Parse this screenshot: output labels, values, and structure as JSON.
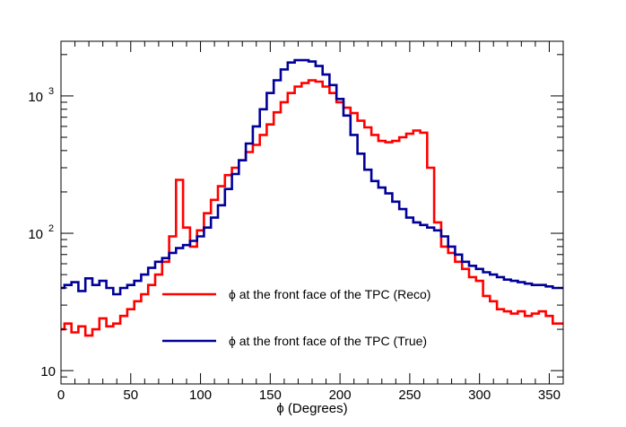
{
  "chart_data": {
    "type": "line",
    "title": "",
    "xlabel": "ϕ (Degrees)",
    "ylabel": "",
    "xlim": [
      0,
      360
    ],
    "ylim": [
      8,
      2500
    ],
    "yscale": "log",
    "grid": false,
    "legend_placement": "lower-center",
    "x_ticks": [
      0,
      50,
      100,
      150,
      200,
      250,
      300,
      350
    ],
    "x_tick_labels": [
      "0",
      "50",
      "100",
      "150",
      "200",
      "250",
      "300",
      "350"
    ],
    "y_ticks": [
      10,
      100,
      1000
    ],
    "y_tick_labels": [
      "10",
      "10",
      "10"
    ],
    "y_tick_exponents": [
      "",
      "2",
      "3"
    ],
    "x": [
      0,
      5,
      10,
      15,
      20,
      25,
      30,
      35,
      40,
      45,
      50,
      55,
      60,
      65,
      70,
      75,
      80,
      85,
      90,
      95,
      100,
      105,
      110,
      115,
      120,
      125,
      130,
      135,
      140,
      145,
      150,
      155,
      160,
      165,
      170,
      175,
      180,
      185,
      190,
      195,
      200,
      205,
      210,
      215,
      220,
      225,
      230,
      235,
      240,
      245,
      250,
      255,
      260,
      265,
      270,
      275,
      280,
      285,
      290,
      295,
      300,
      305,
      310,
      315,
      320,
      325,
      330,
      335,
      340,
      345,
      350,
      355,
      360
    ],
    "series": [
      {
        "name": "ϕ at the front face of the TPC (Reco)",
        "color": "#ff0000",
        "values": [
          20,
          22,
          19,
          21,
          18,
          20,
          24,
          21,
          22,
          25,
          28,
          32,
          36,
          42,
          50,
          62,
          95,
          245,
          110,
          80,
          105,
          140,
          175,
          220,
          265,
          300,
          340,
          390,
          440,
          520,
          620,
          760,
          900,
          1050,
          1170,
          1240,
          1300,
          1270,
          1170,
          1050,
          900,
          820,
          750,
          660,
          590,
          520,
          470,
          460,
          470,
          500,
          530,
          560,
          540,
          300,
          120,
          80,
          72,
          62,
          55,
          48,
          45,
          35,
          32,
          28,
          27,
          26,
          27,
          25,
          26,
          27,
          25,
          22,
          22
        ]
      },
      {
        "name": "ϕ at the front face of the TPC (True)",
        "color": "#000099",
        "values": [
          40,
          42,
          44,
          38,
          47,
          42,
          45,
          40,
          36,
          40,
          42,
          45,
          50,
          56,
          62,
          66,
          72,
          78,
          82,
          88,
          95,
          110,
          130,
          160,
          210,
          270,
          340,
          450,
          600,
          800,
          1050,
          1300,
          1560,
          1750,
          1820,
          1820,
          1780,
          1650,
          1430,
          1200,
          950,
          720,
          520,
          380,
          290,
          240,
          215,
          195,
          170,
          150,
          130,
          120,
          115,
          110,
          105,
          95,
          80,
          70,
          62,
          58,
          55,
          52,
          50,
          48,
          46,
          45,
          44,
          43,
          42,
          42,
          41,
          40,
          40
        ]
      }
    ]
  }
}
